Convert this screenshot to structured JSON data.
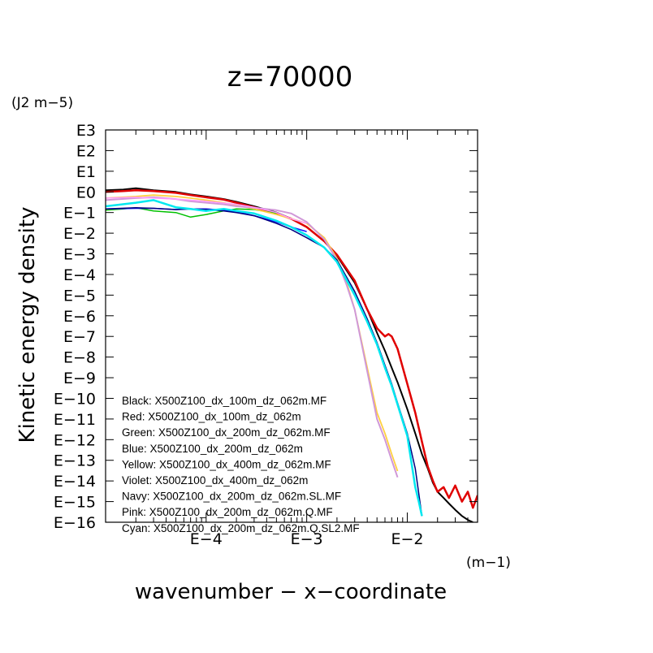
{
  "chart_data": {
    "type": "line",
    "title": "z=70000",
    "xlabel": "wavenumber − x−coordinate",
    "ylabel": "Kinetic energy density",
    "x_unit": "(m−1)",
    "y_unit": "(J2 m−5)",
    "x_scale": "log",
    "y_scale": "log",
    "xlim": [
      1e-05,
      0.05
    ],
    "ylim": [
      1e-16,
      1000
    ],
    "x_ticks": [
      {
        "value": 0.0001,
        "label": "E−4"
      },
      {
        "value": 0.001,
        "label": "E−3"
      },
      {
        "value": 0.01,
        "label": "E−2"
      }
    ],
    "y_ticks": [
      {
        "value": 1000,
        "label": "E3"
      },
      {
        "value": 100,
        "label": "E2"
      },
      {
        "value": 10,
        "label": "E1"
      },
      {
        "value": 1,
        "label": "E0"
      },
      {
        "value": 0.1,
        "label": "E−1"
      },
      {
        "value": 0.01,
        "label": "E−2"
      },
      {
        "value": 0.001,
        "label": "E−3"
      },
      {
        "value": 0.0001,
        "label": "E−4"
      },
      {
        "value": 1e-05,
        "label": "E−5"
      },
      {
        "value": 1e-06,
        "label": "E−6"
      },
      {
        "value": 1e-07,
        "label": "E−7"
      },
      {
        "value": 1e-08,
        "label": "E−8"
      },
      {
        "value": 1e-09,
        "label": "E−9"
      },
      {
        "value": 1e-10,
        "label": "E−10"
      },
      {
        "value": 1e-11,
        "label": "E−11"
      },
      {
        "value": 1e-12,
        "label": "E−12"
      },
      {
        "value": 1e-13,
        "label": "E−13"
      },
      {
        "value": 1e-14,
        "label": "E−14"
      },
      {
        "value": 1e-15,
        "label": "E−15"
      },
      {
        "value": 1e-16,
        "label": "E−16"
      }
    ],
    "grid": false,
    "legend_position": "bottom-left",
    "legend": [
      "Black: X500Z100_dx_100m_dz_062m.MF",
      "Red: X500Z100_dx_100m_dz_062m",
      "Green: X500Z100_dx_200m_dz_062m.MF",
      "Blue: X500Z100_dx_200m_dz_062m",
      "Yellow: X500Z100_dx_400m_dz_062m.MF",
      "Violet: X500Z100_dx_400m_dz_062m",
      "Navy: X500Z100_dx_200m_dz_062m.SL.MF",
      "Pink: X500Z100_dx_200m_dz_062m.Q.MF",
      "Cyan: X500Z100_dx_200m_dz_062m.Q.SL2.MF"
    ],
    "series": [
      {
        "color": "#000000",
        "width": 2,
        "x": [
          1e-05,
          1.5e-05,
          2e-05,
          3e-05,
          5e-05,
          7e-05,
          0.0001,
          0.00015,
          0.0002,
          0.0003,
          0.0005,
          0.0007,
          0.001,
          0.0015,
          0.002,
          0.003,
          0.004,
          0.005,
          0.006,
          0.007,
          0.008,
          0.01,
          0.012,
          0.014,
          0.016,
          0.018,
          0.02,
          0.023,
          0.026,
          0.03,
          0.035,
          0.04,
          0.045
        ],
        "y": [
          1.2,
          1.3,
          1.5,
          1.2,
          1.0,
          0.75,
          0.6,
          0.45,
          0.33,
          0.2,
          0.1,
          0.05,
          0.02,
          0.004,
          0.0008,
          4e-05,
          2e-06,
          1.5e-07,
          2e-08,
          3e-09,
          6e-10,
          3e-11,
          2e-12,
          2e-13,
          4e-14,
          8e-15,
          3e-15,
          1.5e-15,
          8e-16,
          4e-16,
          2e-16,
          1.3e-16,
          1e-16
        ]
      },
      {
        "color": "#e00000",
        "width": 2.5,
        "x": [
          1e-05,
          1.5e-05,
          2e-05,
          3e-05,
          5e-05,
          7e-05,
          0.0001,
          0.00015,
          0.0002,
          0.0003,
          0.0005,
          0.0007,
          0.001,
          0.0015,
          0.002,
          0.003,
          0.004,
          0.005,
          0.006,
          0.0065,
          0.007,
          0.008,
          0.01,
          0.012,
          0.014,
          0.016,
          0.018,
          0.02,
          0.023,
          0.026,
          0.03,
          0.035,
          0.04,
          0.045,
          0.05
        ],
        "y": [
          1.0,
          1.1,
          1.2,
          1.1,
          0.9,
          0.7,
          0.55,
          0.42,
          0.3,
          0.18,
          0.09,
          0.05,
          0.02,
          0.004,
          0.0009,
          5e-05,
          2e-06,
          2.5e-07,
          1e-07,
          1.3e-07,
          1e-07,
          2.5e-08,
          5e-10,
          2e-11,
          8e-13,
          5e-14,
          1e-14,
          3e-15,
          5e-15,
          1.5e-15,
          6e-15,
          1e-15,
          3e-15,
          5e-16,
          2e-15
        ]
      },
      {
        "color": "#00c000",
        "width": 1.5,
        "x": [
          1e-05,
          1.5e-05,
          2e-05,
          3e-05,
          5e-05,
          7e-05,
          0.0001,
          0.00015,
          0.0002,
          0.0003,
          0.0005
        ],
        "y": [
          0.13,
          0.15,
          0.17,
          0.12,
          0.1,
          0.06,
          0.08,
          0.12,
          0.15,
          0.14,
          0.09
        ]
      },
      {
        "color": "#1010ff",
        "width": 1.5,
        "x": [
          1e-05,
          2e-05,
          3e-05,
          5e-05,
          7e-05,
          0.0001,
          0.00015,
          0.0002,
          0.0003,
          0.0005,
          0.0007,
          0.001
        ],
        "y": [
          0.15,
          0.16,
          0.16,
          0.14,
          0.15,
          0.15,
          0.13,
          0.11,
          0.07,
          0.035,
          0.02,
          0.012
        ]
      },
      {
        "color": "#ffd040",
        "width": 1.8,
        "x": [
          1e-05,
          2e-05,
          3e-05,
          5e-05,
          7e-05,
          0.0001,
          0.00015,
          0.0002,
          0.0003,
          0.0005,
          0.0007,
          0.001,
          0.0015,
          0.002,
          0.0025,
          0.003,
          0.004,
          0.005,
          0.006,
          0.007,
          0.008
        ],
        "y": [
          0.5,
          0.6,
          0.7,
          0.6,
          0.5,
          0.4,
          0.3,
          0.22,
          0.15,
          0.08,
          0.05,
          0.03,
          0.006,
          0.0006,
          4e-05,
          2e-06,
          3e-09,
          2e-11,
          2e-12,
          2e-13,
          3e-14
        ]
      },
      {
        "color": "#d098d8",
        "width": 2,
        "x": [
          1e-05,
          2e-05,
          3e-05,
          5e-05,
          7e-05,
          0.0001,
          0.00015,
          0.0002,
          0.0003,
          0.0005,
          0.0007,
          0.001,
          0.0015,
          0.002,
          0.0025,
          0.003,
          0.004,
          0.005,
          0.006,
          0.007,
          0.008
        ],
        "y": [
          0.4,
          0.5,
          0.55,
          0.45,
          0.35,
          0.3,
          0.25,
          0.2,
          0.17,
          0.13,
          0.09,
          0.035,
          0.005,
          0.0005,
          3e-05,
          2e-06,
          2e-09,
          1e-11,
          1e-12,
          1e-13,
          1.5e-14
        ]
      },
      {
        "color": "#000080",
        "width": 1.5,
        "x": [
          1e-05,
          2e-05,
          3e-05,
          5e-05,
          7e-05,
          0.0001,
          0.00015,
          0.0002,
          0.0003,
          0.0005,
          0.0007,
          0.001,
          0.0015,
          0.002,
          0.003,
          0.004,
          0.005,
          0.006,
          0.007,
          0.008,
          0.01,
          0.012,
          0.014
        ],
        "y": [
          0.15,
          0.17,
          0.16,
          0.14,
          0.15,
          0.14,
          0.12,
          0.1,
          0.07,
          0.03,
          0.015,
          0.006,
          0.002,
          0.0005,
          1.5e-05,
          7e-07,
          5e-08,
          4e-09,
          5e-10,
          6e-11,
          2e-12,
          4e-14,
          2e-16
        ]
      },
      {
        "color": "#ff9aff",
        "width": 1.5,
        "x": [
          1e-05,
          2e-05,
          3e-05,
          5e-05,
          0.0001,
          0.0002,
          0.0003,
          0.0005,
          0.0007,
          0.001
        ],
        "y": [
          0.5,
          0.55,
          0.5,
          0.45,
          0.35,
          0.25,
          0.18,
          0.1,
          0.05,
          0.03
        ]
      },
      {
        "color": "#00e8f0",
        "width": 2.5,
        "x": [
          1e-05,
          2e-05,
          3e-05,
          5e-05,
          7e-05,
          0.0001,
          0.00015,
          0.0002,
          0.0003,
          0.0005,
          0.0007,
          0.001,
          0.0015,
          0.002,
          0.003,
          0.004,
          0.005,
          0.006,
          0.007,
          0.008,
          0.01,
          0.012,
          0.013,
          0.014
        ],
        "y": [
          0.2,
          0.3,
          0.4,
          0.18,
          0.15,
          0.12,
          0.15,
          0.12,
          0.09,
          0.04,
          0.02,
          0.008,
          0.002,
          0.0004,
          1e-05,
          5e-07,
          4e-08,
          3e-09,
          4e-10,
          5e-11,
          1.5e-12,
          5e-15,
          1e-15,
          2e-16
        ]
      }
    ]
  }
}
